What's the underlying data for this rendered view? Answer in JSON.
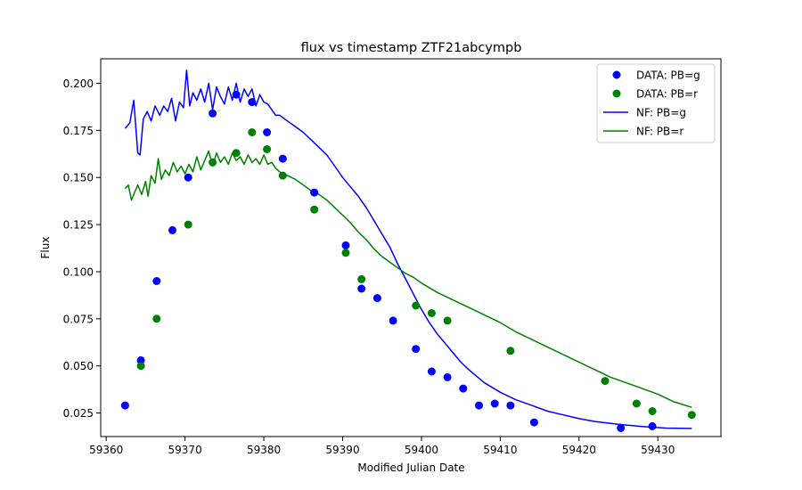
{
  "chart_data": {
    "type": "scatter",
    "title": "flux vs timestamp ZTF21abcympb",
    "xlabel": "Modified Julian Date",
    "ylabel": "Flux",
    "xlim": [
      59359.3,
      59438
    ],
    "ylim": [
      0.0125,
      0.213
    ],
    "xticks": [
      59360,
      59370,
      59380,
      59390,
      59400,
      59410,
      59420,
      59430
    ],
    "yticks": [
      0.025,
      0.05,
      0.075,
      0.1,
      0.125,
      0.15,
      0.175,
      0.2
    ],
    "ytick_labels": [
      "0.025",
      "0.050",
      "0.075",
      "0.100",
      "0.125",
      "0.150",
      "0.175",
      "0.200"
    ],
    "grid": false,
    "legend_position": "top-right",
    "legend": [
      "DATA: PB=g",
      "DATA: PB=r",
      "NF: PB=g",
      "NF: PB=r"
    ],
    "scatter_series": [
      {
        "name": "DATA: PB=g",
        "color": "#0000ff",
        "points": [
          [
            59362.4,
            0.029
          ],
          [
            59364.4,
            0.053
          ],
          [
            59366.4,
            0.095
          ],
          [
            59368.4,
            0.122
          ],
          [
            59370.4,
            0.15
          ],
          [
            59373.5,
            0.184
          ],
          [
            59376.5,
            0.194
          ],
          [
            59378.5,
            0.19
          ],
          [
            59380.4,
            0.174
          ],
          [
            59382.4,
            0.16
          ],
          [
            59386.4,
            0.142
          ],
          [
            59390.4,
            0.114
          ],
          [
            59392.4,
            0.091
          ],
          [
            59394.4,
            0.086
          ],
          [
            59396.4,
            0.074
          ],
          [
            59399.3,
            0.059
          ],
          [
            59401.3,
            0.047
          ],
          [
            59403.3,
            0.044
          ],
          [
            59405.3,
            0.038
          ],
          [
            59407.3,
            0.029
          ],
          [
            59409.3,
            0.03
          ],
          [
            59411.3,
            0.029
          ],
          [
            59414.3,
            0.02
          ],
          [
            59425.3,
            0.017
          ],
          [
            59429.3,
            0.018
          ]
        ]
      },
      {
        "name": "DATA: PB=r",
        "color": "#008000",
        "points": [
          [
            59364.4,
            0.05
          ],
          [
            59366.4,
            0.075
          ],
          [
            59370.4,
            0.125
          ],
          [
            59373.5,
            0.158
          ],
          [
            59376.5,
            0.163
          ],
          [
            59378.5,
            0.174
          ],
          [
            59380.4,
            0.165
          ],
          [
            59382.4,
            0.151
          ],
          [
            59386.4,
            0.133
          ],
          [
            59390.4,
            0.11
          ],
          [
            59392.4,
            0.096
          ],
          [
            59399.3,
            0.082
          ],
          [
            59401.3,
            0.078
          ],
          [
            59403.3,
            0.074
          ],
          [
            59411.3,
            0.058
          ],
          [
            59423.3,
            0.042
          ],
          [
            59427.3,
            0.03
          ],
          [
            59429.3,
            0.026
          ],
          [
            59434.3,
            0.024
          ]
        ]
      }
    ],
    "line_series": [
      {
        "name": "NF: PB=g",
        "color": "#0000ff",
        "points": [
          [
            59362.4,
            0.176
          ],
          [
            59363.0,
            0.179
          ],
          [
            59363.5,
            0.191
          ],
          [
            59364.0,
            0.163
          ],
          [
            59364.3,
            0.162
          ],
          [
            59364.7,
            0.181
          ],
          [
            59365.2,
            0.185
          ],
          [
            59365.7,
            0.18
          ],
          [
            59366.2,
            0.188
          ],
          [
            59366.8,
            0.183
          ],
          [
            59367.3,
            0.188
          ],
          [
            59367.8,
            0.185
          ],
          [
            59368.3,
            0.192
          ],
          [
            59368.8,
            0.18
          ],
          [
            59369.3,
            0.19
          ],
          [
            59369.8,
            0.187
          ],
          [
            59370.2,
            0.207
          ],
          [
            59370.6,
            0.188
          ],
          [
            59371.0,
            0.195
          ],
          [
            59371.5,
            0.191
          ],
          [
            59372.0,
            0.197
          ],
          [
            59372.5,
            0.19
          ],
          [
            59373.0,
            0.2
          ],
          [
            59373.5,
            0.186
          ],
          [
            59374.0,
            0.198
          ],
          [
            59374.5,
            0.193
          ],
          [
            59375.0,
            0.189
          ],
          [
            59375.5,
            0.198
          ],
          [
            59376.0,
            0.191
          ],
          [
            59376.5,
            0.2
          ],
          [
            59377.0,
            0.19
          ],
          [
            59377.5,
            0.197
          ],
          [
            59378.0,
            0.193
          ],
          [
            59378.5,
            0.197
          ],
          [
            59379.0,
            0.188
          ],
          [
            59379.5,
            0.194
          ],
          [
            59380.0,
            0.19
          ],
          [
            59380.5,
            0.189
          ],
          [
            59381.0,
            0.186
          ],
          [
            59381.5,
            0.183
          ],
          [
            59382.0,
            0.183
          ],
          [
            59383.0,
            0.18
          ],
          [
            59384.0,
            0.177
          ],
          [
            59385.0,
            0.174
          ],
          [
            59386.0,
            0.17
          ],
          [
            59387.0,
            0.166
          ],
          [
            59388.0,
            0.162
          ],
          [
            59389.0,
            0.156
          ],
          [
            59390.0,
            0.15
          ],
          [
            59391.0,
            0.145
          ],
          [
            59392.0,
            0.14
          ],
          [
            59393.0,
            0.134
          ],
          [
            59394.0,
            0.127
          ],
          [
            59395.0,
            0.12
          ],
          [
            59396.0,
            0.113
          ],
          [
            59397.0,
            0.104
          ],
          [
            59398.0,
            0.096
          ],
          [
            59399.0,
            0.088
          ],
          [
            59400.0,
            0.08
          ],
          [
            59401.0,
            0.073
          ],
          [
            59402.0,
            0.067
          ],
          [
            59403.0,
            0.062
          ],
          [
            59404.0,
            0.057
          ],
          [
            59405.0,
            0.052
          ],
          [
            59406.0,
            0.048
          ],
          [
            59408.0,
            0.041
          ],
          [
            59410.0,
            0.036
          ],
          [
            59412.0,
            0.032
          ],
          [
            59414.0,
            0.029
          ],
          [
            59416.0,
            0.026
          ],
          [
            59418.0,
            0.024
          ],
          [
            59420.0,
            0.022
          ],
          [
            59422.0,
            0.0205
          ],
          [
            59425.0,
            0.019
          ],
          [
            59428.0,
            0.0178
          ],
          [
            59431.0,
            0.017
          ],
          [
            59434.3,
            0.0168
          ]
        ]
      },
      {
        "name": "NF: PB=r",
        "color": "#008000",
        "points": [
          [
            59362.4,
            0.144
          ],
          [
            59362.8,
            0.146
          ],
          [
            59363.2,
            0.138
          ],
          [
            59363.6,
            0.142
          ],
          [
            59364.0,
            0.146
          ],
          [
            59364.5,
            0.141
          ],
          [
            59365.0,
            0.148
          ],
          [
            59365.3,
            0.14
          ],
          [
            59365.7,
            0.151
          ],
          [
            59366.2,
            0.147
          ],
          [
            59366.6,
            0.16
          ],
          [
            59367.0,
            0.149
          ],
          [
            59367.5,
            0.154
          ],
          [
            59368.0,
            0.151
          ],
          [
            59368.5,
            0.158
          ],
          [
            59369.0,
            0.153
          ],
          [
            59369.5,
            0.156
          ],
          [
            59370.0,
            0.152
          ],
          [
            59370.5,
            0.157
          ],
          [
            59371.0,
            0.153
          ],
          [
            59371.5,
            0.161
          ],
          [
            59372.0,
            0.154
          ],
          [
            59372.5,
            0.159
          ],
          [
            59373.0,
            0.164
          ],
          [
            59373.5,
            0.156
          ],
          [
            59374.0,
            0.163
          ],
          [
            59374.5,
            0.158
          ],
          [
            59375.0,
            0.161
          ],
          [
            59375.5,
            0.157
          ],
          [
            59376.0,
            0.163
          ],
          [
            59376.5,
            0.159
          ],
          [
            59377.0,
            0.161
          ],
          [
            59377.5,
            0.157
          ],
          [
            59378.0,
            0.162
          ],
          [
            59378.5,
            0.158
          ],
          [
            59379.0,
            0.16
          ],
          [
            59379.5,
            0.157
          ],
          [
            59380.0,
            0.162
          ],
          [
            59380.5,
            0.157
          ],
          [
            59381.0,
            0.158
          ],
          [
            59381.5,
            0.155
          ],
          [
            59382.0,
            0.153
          ],
          [
            59383.0,
            0.151
          ],
          [
            59384.0,
            0.149
          ],
          [
            59385.0,
            0.146
          ],
          [
            59386.0,
            0.143
          ],
          [
            59387.0,
            0.141
          ],
          [
            59388.0,
            0.138
          ],
          [
            59389.0,
            0.134
          ],
          [
            59390.0,
            0.13
          ],
          [
            59391.0,
            0.126
          ],
          [
            59392.0,
            0.121
          ],
          [
            59393.0,
            0.117
          ],
          [
            59394.0,
            0.112
          ],
          [
            59395.0,
            0.108
          ],
          [
            59396.0,
            0.105
          ],
          [
            59397.0,
            0.102
          ],
          [
            59398.0,
            0.099
          ],
          [
            59399.0,
            0.097
          ],
          [
            59400.0,
            0.094
          ],
          [
            59402.0,
            0.089
          ],
          [
            59404.0,
            0.085
          ],
          [
            59406.0,
            0.081
          ],
          [
            59408.0,
            0.077
          ],
          [
            59410.0,
            0.073
          ],
          [
            59412.0,
            0.068
          ],
          [
            59414.0,
            0.064
          ],
          [
            59416.0,
            0.06
          ],
          [
            59418.0,
            0.056
          ],
          [
            59420.0,
            0.052
          ],
          [
            59422.0,
            0.048
          ],
          [
            59424.0,
            0.044
          ],
          [
            59426.0,
            0.041
          ],
          [
            59428.0,
            0.038
          ],
          [
            59430.0,
            0.035
          ],
          [
            59432.0,
            0.031
          ],
          [
            59434.3,
            0.028
          ]
        ]
      }
    ]
  }
}
